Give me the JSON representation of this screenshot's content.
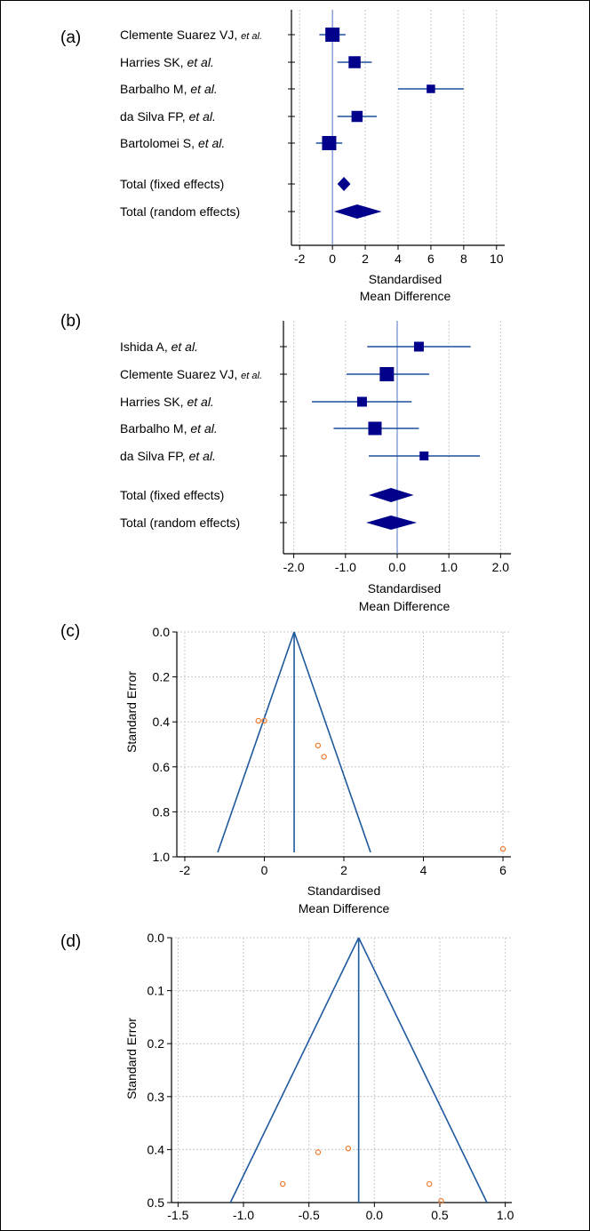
{
  "colors": {
    "forest_marker": "#00008b",
    "forest_ci": "#1f4e9c",
    "ref_line": "#4a72c4",
    "grid": "#c8c8c8",
    "funnel_line": "#1f5a9e",
    "funnel_point": "#f07a2a"
  },
  "chart_data": [
    {
      "panel": "(a)",
      "type": "forest",
      "xlabel_line1": "Standardised",
      "xlabel_line2": "Mean Difference",
      "xlim": [
        -2.5,
        10.5
      ],
      "xticks": [
        -2,
        0,
        2,
        4,
        6,
        8,
        10
      ],
      "xtick_labels": [
        "-2",
        "0",
        "2",
        "4",
        "6",
        "8",
        "10"
      ],
      "studies": [
        {
          "label": "Clemente Suarez VJ, ",
          "etal": "et al.",
          "small": true,
          "estimate": 0.0,
          "ci": [
            -0.8,
            0.8
          ],
          "weight": 2.0
        },
        {
          "label": "Harries SK, ",
          "etal": "et al.",
          "estimate": 1.35,
          "ci": [
            0.3,
            2.4
          ],
          "weight": 1.5
        },
        {
          "label": "Barbalho M, ",
          "etal": "et al.",
          "estimate": 6.0,
          "ci": [
            4.0,
            8.0
          ],
          "weight": 0.7
        },
        {
          "label": "da Silva FP, ",
          "etal": "et al.",
          "estimate": 1.5,
          "ci": [
            0.3,
            2.7
          ],
          "weight": 1.3
        },
        {
          "label": "Bartolomei S, ",
          "etal": "et al.",
          "estimate": -0.2,
          "ci": [
            -1.0,
            0.6
          ],
          "weight": 2.0
        }
      ],
      "totals": [
        {
          "label": "Total (fixed effects)",
          "estimate": 0.7,
          "ci": [
            0.3,
            1.1
          ]
        },
        {
          "label": "Total (random effects)",
          "estimate": 1.5,
          "ci": [
            0.1,
            3.0
          ]
        }
      ]
    },
    {
      "panel": "(b)",
      "type": "forest",
      "xlabel_line1": "Standardised",
      "xlabel_line2": "Mean Difference",
      "xlim": [
        -2.2,
        2.2
      ],
      "xticks": [
        -2,
        -1,
        0,
        1,
        2
      ],
      "xtick_labels": [
        "-2.0",
        "-1.0",
        "0.0",
        "1.0",
        "2.0"
      ],
      "studies": [
        {
          "label": "Ishida A, ",
          "etal": "et al.",
          "estimate": 0.42,
          "ci": [
            -0.58,
            1.42
          ],
          "weight": 1.0
        },
        {
          "label": "Clemente Suarez VJ, ",
          "etal": "et al.",
          "small": true,
          "estimate": -0.2,
          "ci": [
            -0.98,
            0.62
          ],
          "weight": 2.0
        },
        {
          "label": "Harries SK, ",
          "etal": "et al.",
          "estimate": -0.68,
          "ci": [
            -1.65,
            0.28
          ],
          "weight": 1.0
        },
        {
          "label": "Barbalho M, ",
          "etal": "et al.",
          "estimate": -0.43,
          "ci": [
            -1.23,
            0.42
          ],
          "weight": 1.8
        },
        {
          "label": "da Silva FP, ",
          "etal": "et al.",
          "estimate": 0.52,
          "ci": [
            -0.55,
            1.6
          ],
          "weight": 0.8
        }
      ],
      "totals": [
        {
          "label": "Total (fixed effects)",
          "estimate": -0.12,
          "ci": [
            -0.55,
            0.32
          ]
        },
        {
          "label": "Total (random effects)",
          "estimate": -0.12,
          "ci": [
            -0.6,
            0.38
          ]
        }
      ]
    },
    {
      "panel": "(c)",
      "type": "scatter",
      "subtype": "funnel",
      "xlabel_line1": "Standardised",
      "xlabel_line2": "Mean Difference",
      "ylabel": "Standard Error",
      "xlim": [
        -2.2,
        6.2
      ],
      "ylim": [
        0.0,
        1.0
      ],
      "y_inverted": true,
      "xticks": [
        -2,
        0,
        2,
        4,
        6
      ],
      "xtick_labels": [
        "-2",
        "0",
        "2",
        "4",
        "6"
      ],
      "yticks": [
        0.0,
        0.2,
        0.4,
        0.6,
        0.8,
        1.0
      ],
      "ytick_labels": [
        "0.0",
        "0.2",
        "0.4",
        "0.6",
        "0.8",
        "1.0"
      ],
      "pooled_estimate": 0.75,
      "funnel_bottom_se": 0.98,
      "points": [
        {
          "x": -0.15,
          "y": 0.395
        },
        {
          "x": 0.0,
          "y": 0.395
        },
        {
          "x": 1.35,
          "y": 0.505
        },
        {
          "x": 1.5,
          "y": 0.555
        },
        {
          "x": 6.0,
          "y": 0.965
        }
      ]
    },
    {
      "panel": "(d)",
      "type": "scatter",
      "subtype": "funnel",
      "xlabel_line1": "Standardised",
      "xlabel_line2": "Mean Difference",
      "ylabel": "Standard Error",
      "xlim": [
        -1.55,
        1.05
      ],
      "ylim": [
        0.0,
        0.5
      ],
      "y_inverted": true,
      "xticks": [
        -1.5,
        -1.0,
        -0.5,
        0.0,
        0.5,
        1.0
      ],
      "xtick_labels": [
        "-1.5",
        "-1.0",
        "-0.5",
        "0.0",
        "0.5",
        "1.0"
      ],
      "yticks": [
        0.0,
        0.1,
        0.2,
        0.3,
        0.4,
        0.5
      ],
      "ytick_labels": [
        "0.0",
        "0.1",
        "0.2",
        "0.3",
        "0.4",
        "0.5"
      ],
      "pooled_estimate": -0.12,
      "funnel_bottom_se": 0.5,
      "points": [
        {
          "x": -0.7,
          "y": 0.465
        },
        {
          "x": -0.43,
          "y": 0.405
        },
        {
          "x": -0.2,
          "y": 0.398
        },
        {
          "x": 0.42,
          "y": 0.465
        },
        {
          "x": 0.51,
          "y": 0.497
        }
      ]
    }
  ]
}
